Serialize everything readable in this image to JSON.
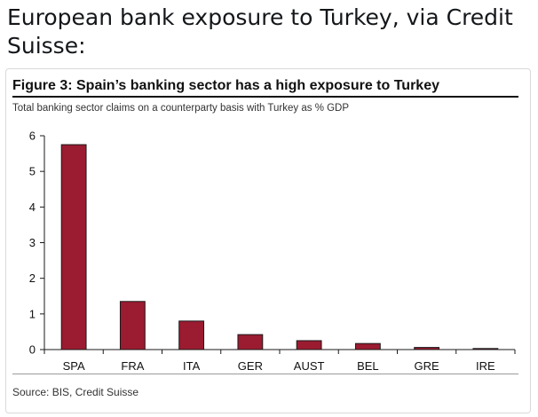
{
  "tweet": {
    "text": "European bank exposure to Turkey, via Credit Suisse:"
  },
  "figure": {
    "title": "Figure 3: Spain’s banking sector has a high exposure to Turkey",
    "subtitle": "Total banking sector claims on a counterparty basis with Turkey as % GDP",
    "source": "Source: BIS, Credit Suisse"
  },
  "colors": {
    "bar": "#9b1b30",
    "bar_edge": "#1a1a1a",
    "axis": "#1a1a1a"
  },
  "chart_data": {
    "type": "bar",
    "title": "Figure 3: Spain’s banking sector has a high exposure to Turkey",
    "subtitle": "Total banking sector claims on a counterparty basis with Turkey as % GDP",
    "xlabel": "",
    "ylabel": "",
    "categories": [
      "SPA",
      "FRA",
      "ITA",
      "GER",
      "AUST",
      "BEL",
      "GRE",
      "IRE"
    ],
    "values": [
      5.75,
      1.35,
      0.8,
      0.42,
      0.25,
      0.17,
      0.06,
      0.03
    ],
    "ylim": [
      0,
      6
    ],
    "yticks": [
      0,
      1,
      2,
      3,
      4,
      5,
      6
    ],
    "grid": false,
    "legend": "none"
  }
}
